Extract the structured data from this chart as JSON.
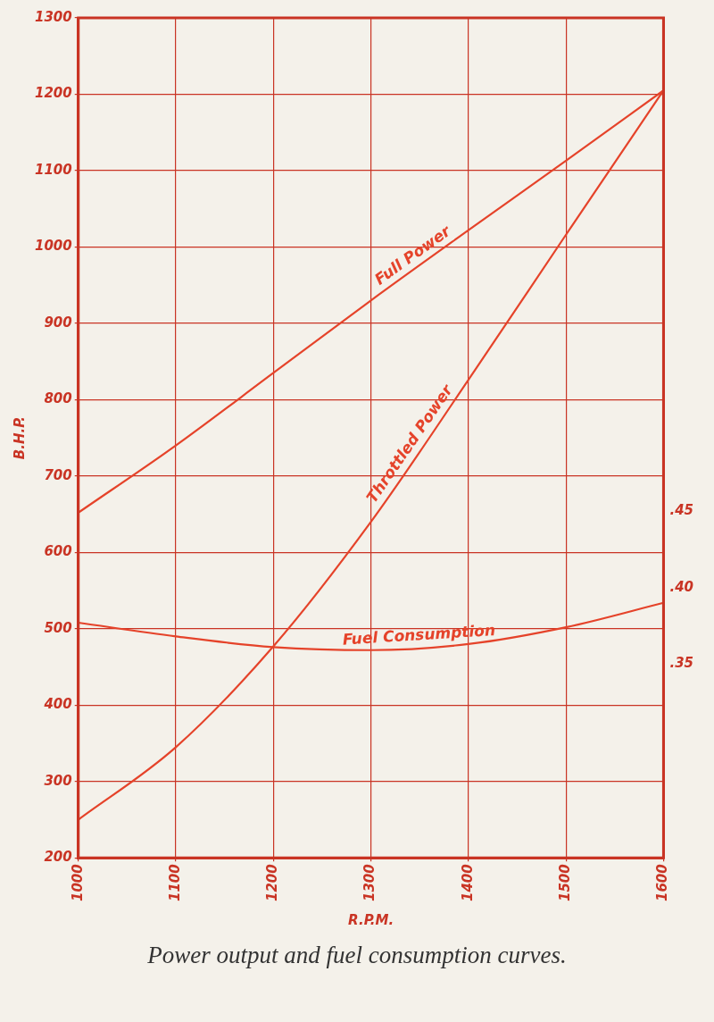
{
  "chart_data": {
    "type": "line",
    "xlabel": "R.P.M.",
    "ylabel": "B.H.P.",
    "x": [
      1000,
      1100,
      1200,
      1300,
      1400,
      1500,
      1600
    ],
    "series": [
      {
        "name": "Full Power",
        "color": "#e5432a",
        "values": [
          652,
          740,
          835,
          930,
          1022,
          1113,
          1205
        ]
      },
      {
        "name": "Throttled Power",
        "color": "#e5432a",
        "values": [
          250,
          345,
          477,
          640,
          826,
          1016,
          1205
        ]
      },
      {
        "name": "Fuel Consumption",
        "color": "#e5432a",
        "axis": "y2",
        "values": [
          0.377,
          0.368,
          0.361,
          0.359,
          0.363,
          0.374,
          0.39
        ]
      }
    ],
    "xlim": [
      1000,
      1600
    ],
    "xticks": [
      1000,
      1100,
      1200,
      1300,
      1400,
      1500,
      1600
    ],
    "ylim": [
      200,
      1300
    ],
    "yticks": [
      200,
      300,
      400,
      500,
      600,
      700,
      800,
      900,
      1000,
      1100,
      1200,
      1300
    ],
    "y2lim": [
      0.223,
      0.773
    ],
    "y2ticks": [
      {
        "value": 0.35,
        "label": ".35"
      },
      {
        "value": 0.4,
        "label": ".40"
      },
      {
        "value": 0.45,
        "label": ".45"
      }
    ],
    "grid": true,
    "legend": false,
    "marker": "none",
    "line_style": "solid",
    "annotations": [
      "Power output and fuel consumption curves."
    ]
  }
}
